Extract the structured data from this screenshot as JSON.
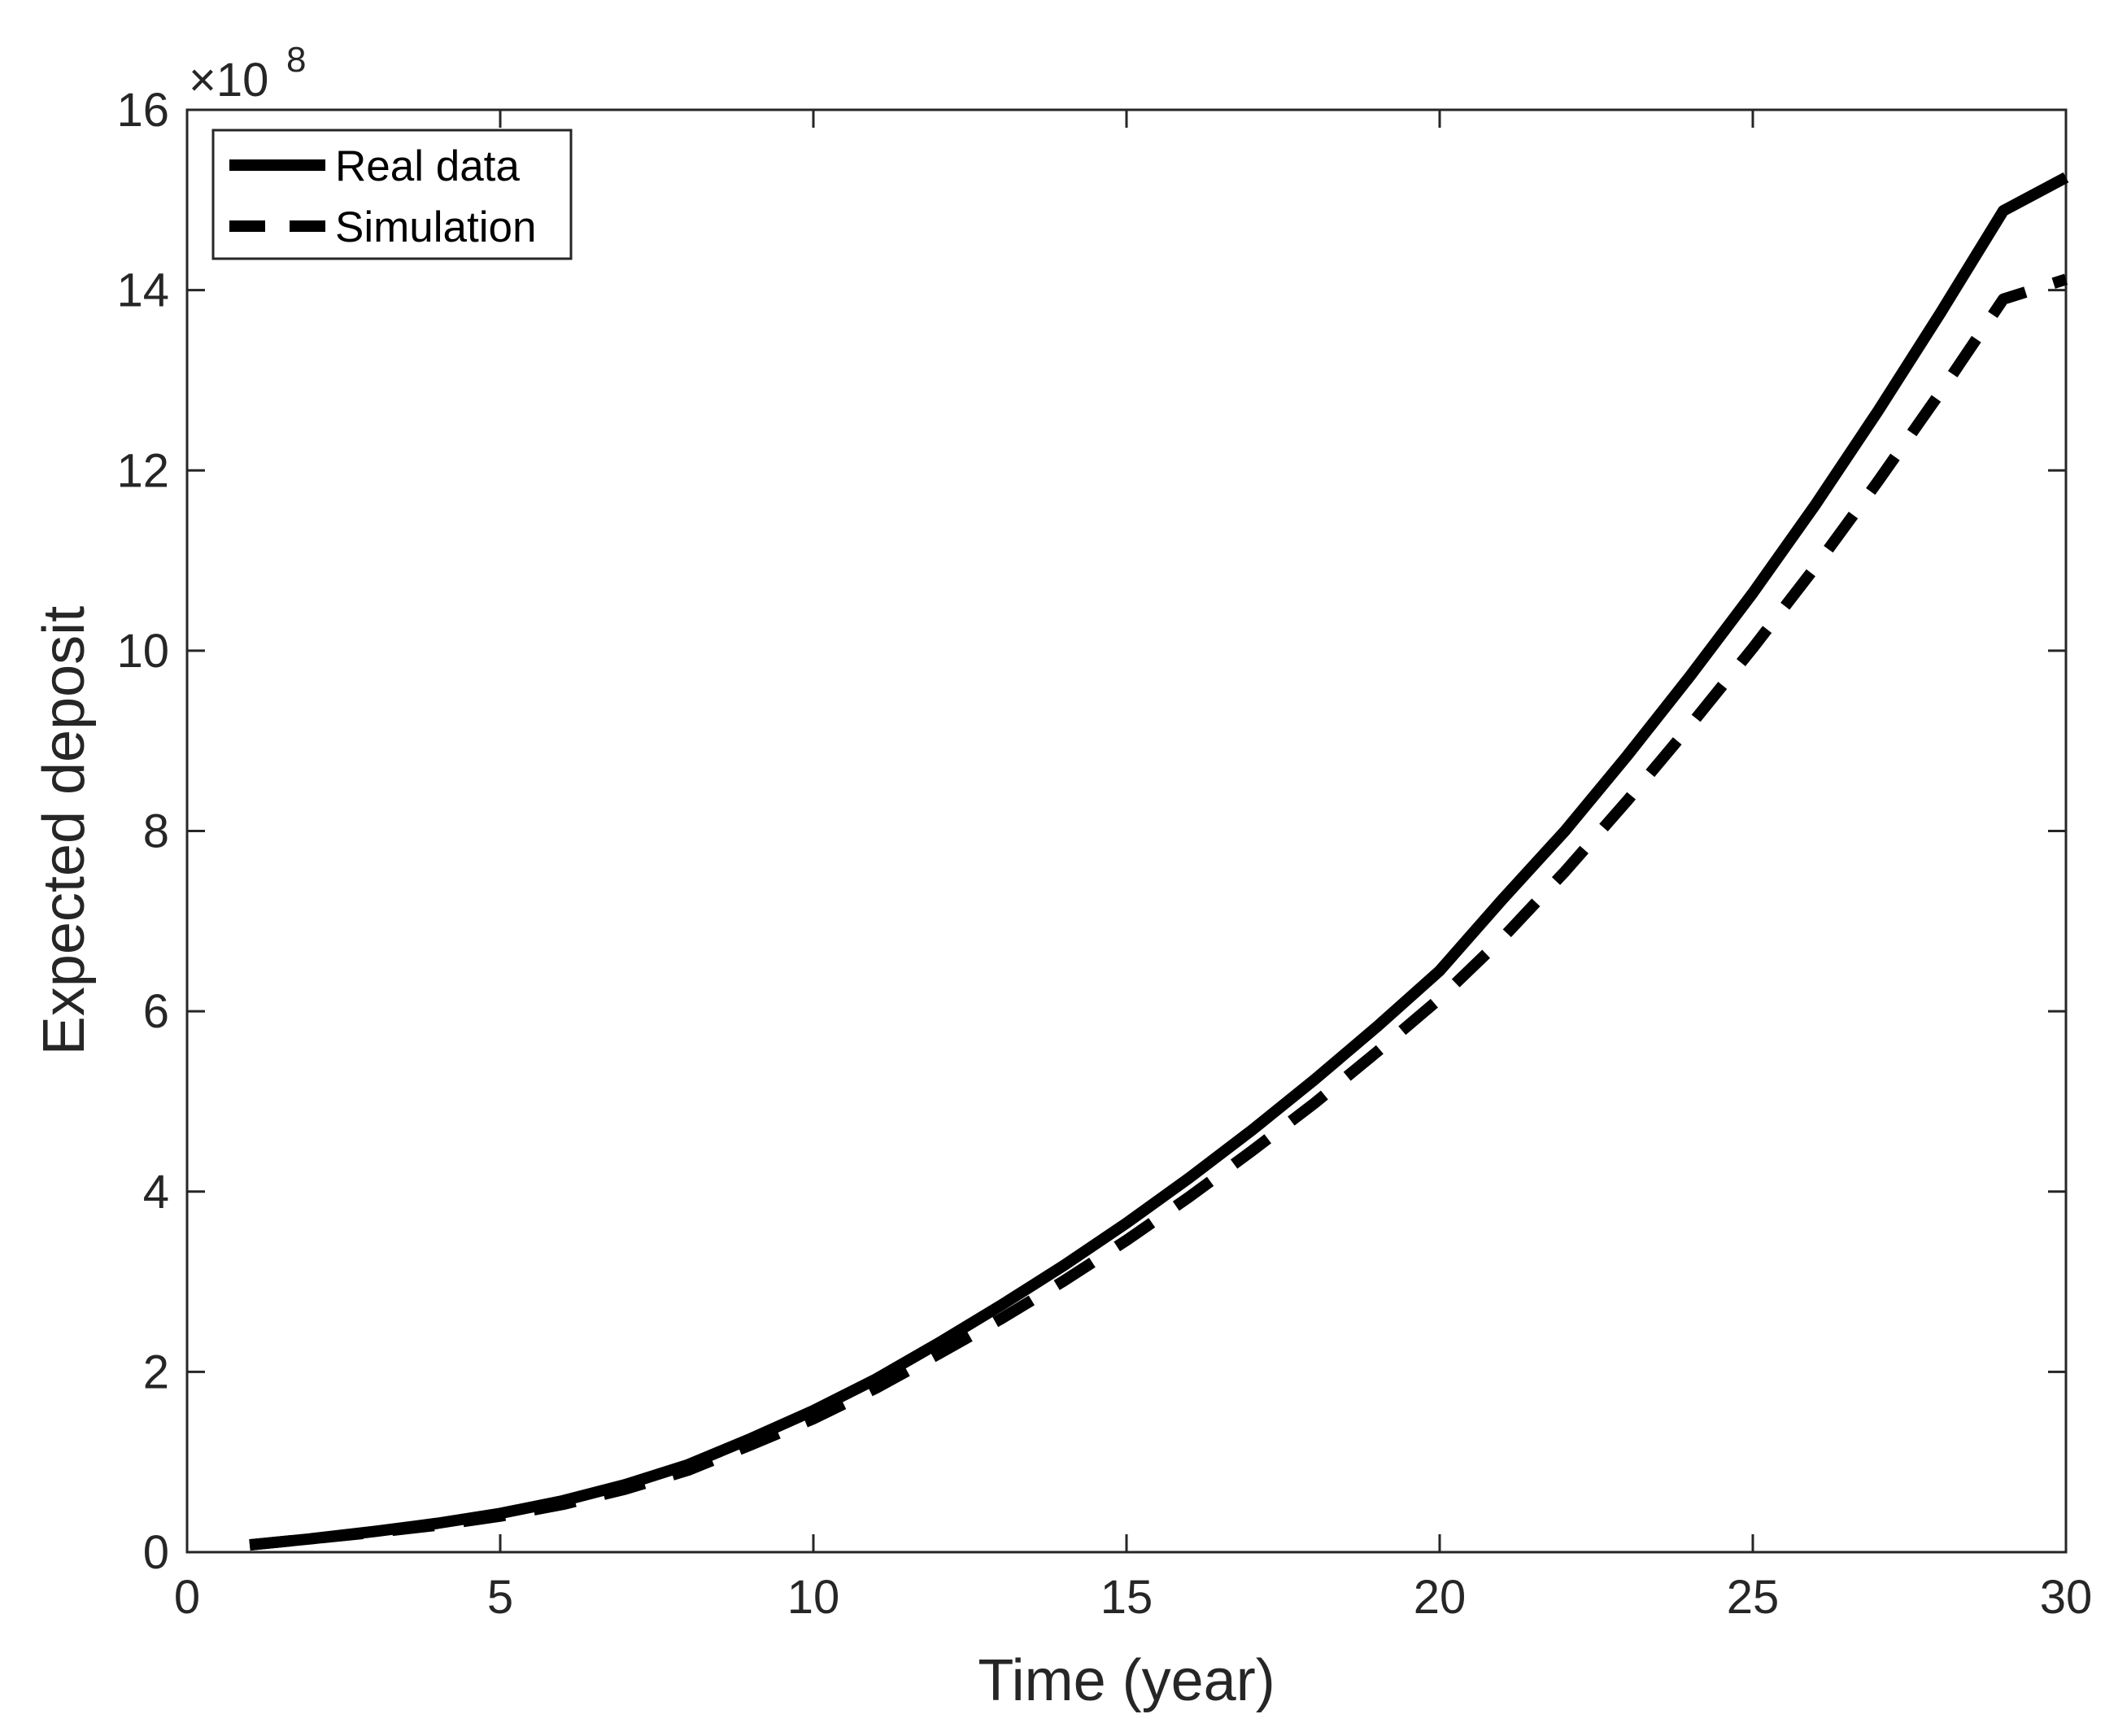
{
  "chart_data": {
    "type": "line",
    "title": "",
    "xlabel": "Time (year)",
    "ylabel": "Expected deposit",
    "y_multiplier": {
      "base": "×10",
      "exponent": "8"
    },
    "xlim": [
      0,
      30
    ],
    "ylim": [
      0,
      16
    ],
    "x_ticks": [
      "0",
      "5",
      "10",
      "15",
      "20",
      "25",
      "30"
    ],
    "y_ticks": [
      "0",
      "2",
      "4",
      "6",
      "8",
      "10",
      "12",
      "14",
      "16"
    ],
    "grid": false,
    "legend_position": "top-left",
    "x": [
      1,
      2,
      3,
      4,
      5,
      6,
      7,
      8,
      9,
      10,
      11,
      12,
      13,
      14,
      15,
      16,
      17,
      18,
      19,
      20,
      21,
      22,
      23,
      24,
      25,
      26,
      27,
      28,
      29,
      30
    ],
    "series": [
      {
        "name": "Real data",
        "style": "solid",
        "color": "#000000",
        "values": [
          0.08,
          0.15,
          0.23,
          0.32,
          0.43,
          0.57,
          0.75,
          0.97,
          1.26,
          1.57,
          1.92,
          2.32,
          2.74,
          3.18,
          3.65,
          4.15,
          4.68,
          5.24,
          5.83,
          6.45,
          7.24,
          8.0,
          8.84,
          9.72,
          10.64,
          11.62,
          12.66,
          13.75,
          14.88,
          15.25
        ]
      },
      {
        "name": "Simulation",
        "style": "dashed",
        "color": "#000000",
        "values": [
          0.08,
          0.15,
          0.22,
          0.3,
          0.4,
          0.53,
          0.7,
          0.91,
          1.19,
          1.48,
          1.82,
          2.2,
          2.59,
          3.01,
          3.46,
          3.94,
          4.45,
          4.98,
          5.55,
          6.14,
          6.81,
          7.55,
          8.34,
          9.17,
          10.03,
          10.93,
          11.88,
          12.87,
          13.9,
          14.12
        ]
      }
    ]
  }
}
